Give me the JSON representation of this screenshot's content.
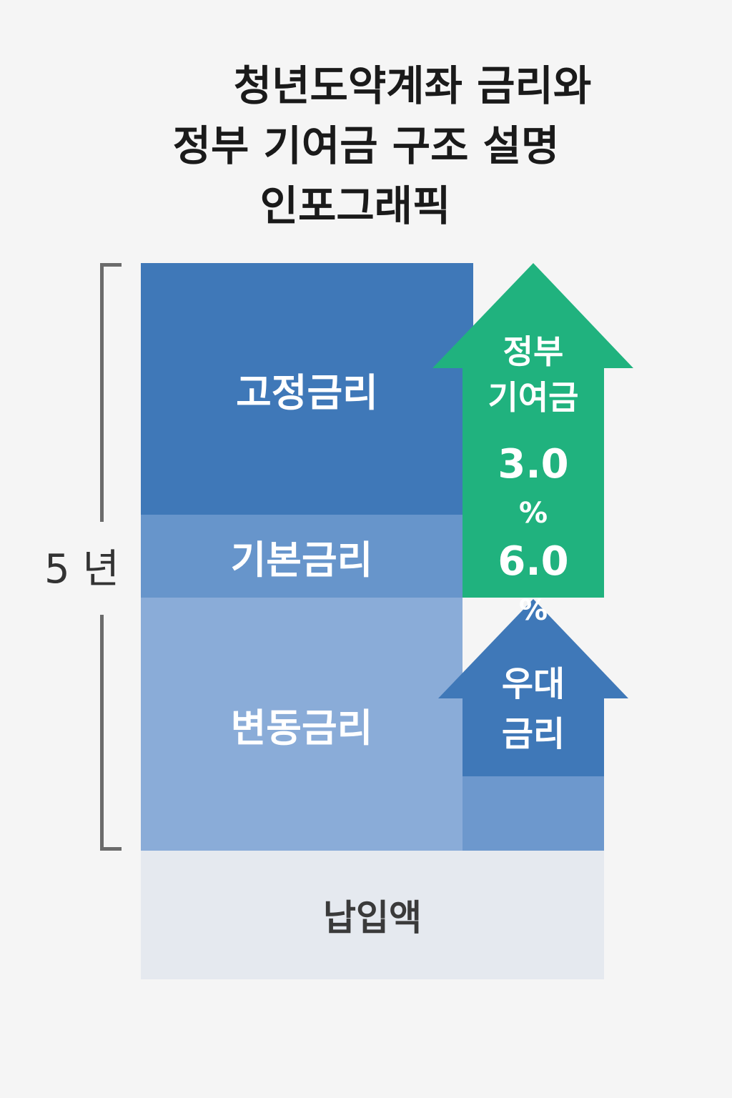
{
  "title": {
    "line1": "청년도약계좌 금리와",
    "line2": "정부 기여금 구조 설명",
    "line3": "인포그래픽"
  },
  "period_label": "5 년",
  "blocks": {
    "fixed_rate": "고정금리",
    "base_rate": "기본금리",
    "variable_rate": "변동금리",
    "deposit": "납입액"
  },
  "government_contribution": {
    "label_line1": "정부",
    "label_line2": "기여금",
    "rate1": "3.0",
    "rate2": "6.0",
    "unit": "%"
  },
  "preferential_rate": {
    "label_line1": "우대",
    "label_line2": "금리"
  },
  "colors": {
    "fixed": "#3f78b8",
    "base": "#6795cb",
    "variable": "#8aacd8",
    "deposit": "#e5e9ef",
    "government_arrow": "#20b27e",
    "preferential_arrow": "#3f78b8"
  }
}
